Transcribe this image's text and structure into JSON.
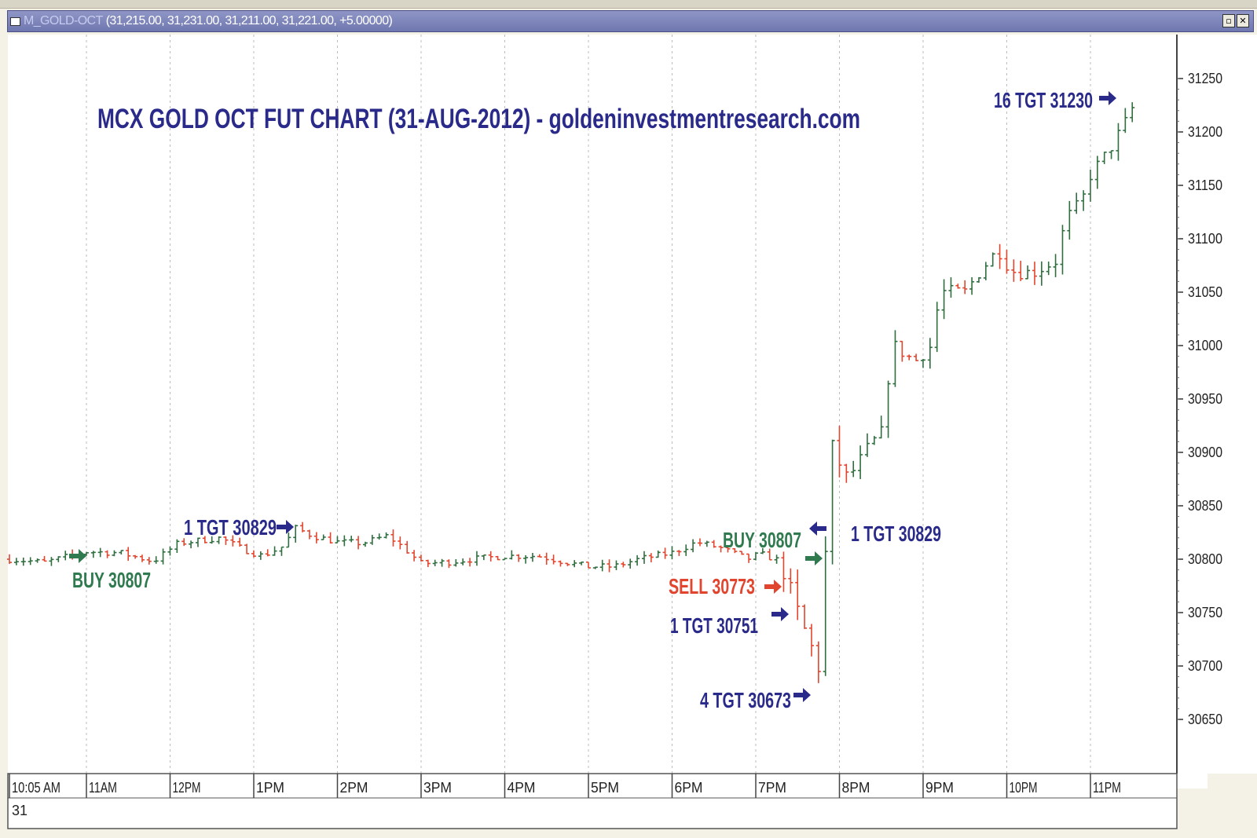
{
  "window": {
    "title_prefix": "M_GOLD-OCT",
    "title_values": "(31,215.00, 31,231.00, 31,211.00, 31,221.00, +5.00000)",
    "buttons": [
      "restore",
      "close"
    ]
  },
  "colors": {
    "up_bar": "#2f6e3f",
    "down_bar": "#e2452e",
    "annotation_blue": "#2a2a8a",
    "annotation_green": "#2f7a4f",
    "annotation_red": "#e2452e",
    "grid": "#bdbdbd"
  },
  "chart_data": {
    "type": "ohlc",
    "title": "MCX GOLD OCT FUT CHART (31-AUG-2012) - goldeninvestmentresearch.com",
    "y_ticks": [
      30650,
      30700,
      30750,
      30800,
      30850,
      30900,
      30950,
      31000,
      31050,
      31100,
      31150,
      31200,
      31250
    ],
    "ylim": [
      30620,
      31270
    ],
    "x_labels": [
      "10:05 AM",
      "11AM",
      "12PM",
      "1PM",
      "2PM",
      "3PM",
      "4PM",
      "5PM",
      "6PM",
      "7PM",
      "8PM",
      "9PM",
      "10PM",
      "11PM"
    ],
    "date_label": "31",
    "session_start_hour": 10.083,
    "session_end_hour": 24.0,
    "grid": true,
    "price_path": [
      [
        10.08,
        30800
      ],
      [
        10.5,
        30797
      ],
      [
        11.0,
        30807
      ],
      [
        11.4,
        30806
      ],
      [
        11.8,
        30798
      ],
      [
        12.1,
        30815
      ],
      [
        12.6,
        30820
      ],
      [
        12.85,
        30810
      ],
      [
        13.1,
        30803
      ],
      [
        13.35,
        30812
      ],
      [
        13.5,
        30829
      ],
      [
        13.7,
        30822
      ],
      [
        14.0,
        30816
      ],
      [
        14.3,
        30815
      ],
      [
        14.6,
        30822
      ],
      [
        14.8,
        30810
      ],
      [
        15.0,
        30796
      ],
      [
        15.3,
        30797
      ],
      [
        15.6,
        30800
      ],
      [
        16.0,
        30803
      ],
      [
        16.4,
        30803
      ],
      [
        16.8,
        30796
      ],
      [
        17.0,
        30793
      ],
      [
        17.3,
        30793
      ],
      [
        17.6,
        30800
      ],
      [
        18.0,
        30806
      ],
      [
        18.3,
        30816
      ],
      [
        18.6,
        30810
      ],
      [
        18.9,
        30800
      ],
      [
        19.05,
        30805
      ],
      [
        19.3,
        30798
      ],
      [
        19.45,
        30760
      ],
      [
        19.6,
        30730
      ],
      [
        19.75,
        30700
      ],
      [
        19.8,
        30755
      ],
      [
        19.85,
        30830
      ],
      [
        19.9,
        30905
      ],
      [
        20.1,
        30875
      ],
      [
        20.35,
        30905
      ],
      [
        20.5,
        30918
      ],
      [
        20.55,
        30955
      ],
      [
        20.65,
        31000
      ],
      [
        20.9,
        30985
      ],
      [
        21.1,
        31000
      ],
      [
        21.2,
        31050
      ],
      [
        21.5,
        31050
      ],
      [
        21.7,
        31072
      ],
      [
        21.9,
        31090
      ],
      [
        22.05,
        31070
      ],
      [
        22.3,
        31068
      ],
      [
        22.6,
        31080
      ],
      [
        22.7,
        31118
      ],
      [
        22.9,
        31135
      ],
      [
        23.0,
        31160
      ],
      [
        23.2,
        31180
      ],
      [
        23.4,
        31206
      ],
      [
        23.5,
        31222
      ]
    ],
    "annotations": [
      {
        "text": "BUY 30807",
        "color": "green",
        "arrow": "right",
        "time": 10.9,
        "price": 30803
      },
      {
        "text": "1 TGT 30829",
        "color": "blue",
        "arrow": "right",
        "time": 12.6,
        "price": 30829
      },
      {
        "text": "BUY 30807",
        "color": "green",
        "arrow": "right",
        "time": 19.3,
        "price": 30810
      },
      {
        "text": "SELL 30773",
        "color": "red",
        "arrow": "right",
        "time": 18.85,
        "price": 30775
      },
      {
        "text": "1 TGT 30751",
        "color": "blue",
        "arrow": "right",
        "time": 18.85,
        "price": 30751
      },
      {
        "text": "4 TGT 30673",
        "color": "blue",
        "arrow": "right",
        "time": 19.2,
        "price": 30673
      },
      {
        "text": "1 TGT 30829",
        "color": "blue",
        "arrow": "left",
        "time": 20.0,
        "price": 30835
      },
      {
        "text": "16 TGT 31230",
        "color": "blue",
        "arrow": "right",
        "time": 22.7,
        "price": 31230
      }
    ]
  }
}
